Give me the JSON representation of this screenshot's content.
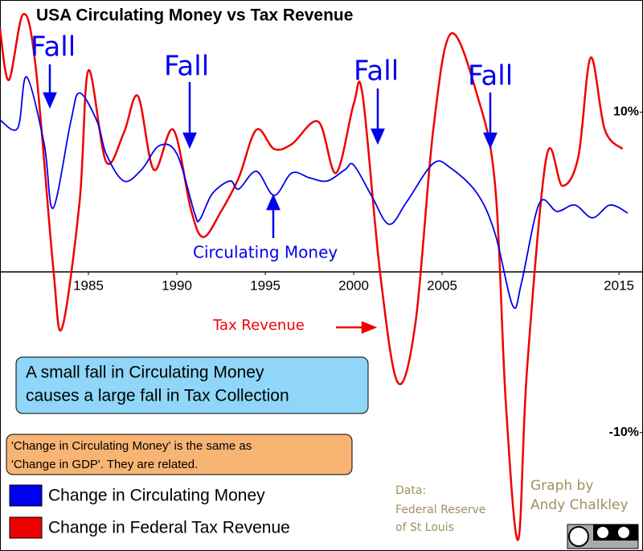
{
  "chart_data": {
    "type": "line",
    "title": "USA Circulating Money vs Tax Revenue",
    "xlim": [
      1980,
      2016.36
    ],
    "ylim": [
      -17.4,
      17
    ],
    "xticks": [
      1985,
      1990,
      1995,
      2000,
      2005,
      2015
    ],
    "yticks": [
      {
        "value": 10,
        "label": "10%"
      },
      {
        "value": -10,
        "label": "-10%"
      }
    ],
    "series": [
      {
        "name": "Change in Circulating Money",
        "color": "#0000ee",
        "x": [
          1980,
          1981,
          1981.5,
          1982.5,
          1983,
          1984,
          1984.5,
          1985.5,
          1986,
          1987,
          1988,
          1989,
          1990,
          1991,
          1991.3,
          1992,
          1993,
          1993.5,
          1994.5,
          1995.5,
          1996.5,
          1997.5,
          1998.5,
          1999.5,
          2000,
          2001,
          2002,
          2003,
          2004.5,
          2005.5,
          2007,
          2008,
          2009,
          2009.5,
          2010.5,
          2011.5,
          2012.5,
          2013.5,
          2014.5,
          2015.5
        ],
        "values": [
          9.5,
          9.0,
          12.2,
          8.0,
          4.0,
          9.4,
          11.2,
          9.4,
          7.4,
          5.7,
          6.4,
          7.9,
          7.4,
          3.7,
          3.3,
          4.9,
          5.7,
          5.2,
          6.3,
          4.8,
          6.2,
          5.9,
          5.7,
          6.4,
          6.7,
          4.8,
          3.0,
          4.4,
          6.8,
          6.5,
          4.9,
          2.4,
          -2.1,
          -0.6,
          4.3,
          3.8,
          4.2,
          3.4,
          4.2,
          3.7
        ]
      },
      {
        "name": "Change in Federal Tax Revenue",
        "color": "#ee0000",
        "x": [
          1980,
          1980.5,
          1981.3,
          1982,
          1983,
          1983.5,
          1984.5,
          1985,
          1986,
          1987,
          1987.8,
          1988.7,
          1989.8,
          1990.8,
          1991.5,
          1992.5,
          1993.5,
          1994.5,
          1995.5,
          1996.5,
          1998,
          1999,
          2000,
          2000.5,
          2001.5,
          2002.5,
          2003.5,
          2004.5,
          2005.5,
          2007,
          2008,
          2008.6,
          2009.3,
          2009.8,
          2010.9,
          2011.8,
          2012.7,
          2013.4,
          2014.2,
          2015.2
        ],
        "values": [
          15.2,
          12.0,
          16.1,
          13.0,
          0.4,
          -3.5,
          4.4,
          12.6,
          6.9,
          8.7,
          11.0,
          6.4,
          8.9,
          3.9,
          2.2,
          3.8,
          5.9,
          8.9,
          7.7,
          8.0,
          9.4,
          6.2,
          10.5,
          11.1,
          -0.1,
          -6.9,
          -3.1,
          8.9,
          14.9,
          11.0,
          5.4,
          -8.1,
          -16.7,
          -6.1,
          7.2,
          5.4,
          7.2,
          13.4,
          8.9,
          7.7
        ]
      }
    ],
    "annotations": [
      "Fall",
      "Fall",
      "Fall",
      "Fall",
      "Circulating Money",
      "Tax Revenue"
    ],
    "callout": [
      "A small fall in Circulating Money",
      "causes a large fall in Tax Collection"
    ],
    "note": [
      "'Change in Circulating Money' is the same as",
      "'Change in GDP'. They are related."
    ],
    "source": [
      "Data:",
      "Federal Reserve",
      "of St Louis"
    ],
    "credit": [
      "Graph by",
      "Andy Chalkley"
    ]
  }
}
